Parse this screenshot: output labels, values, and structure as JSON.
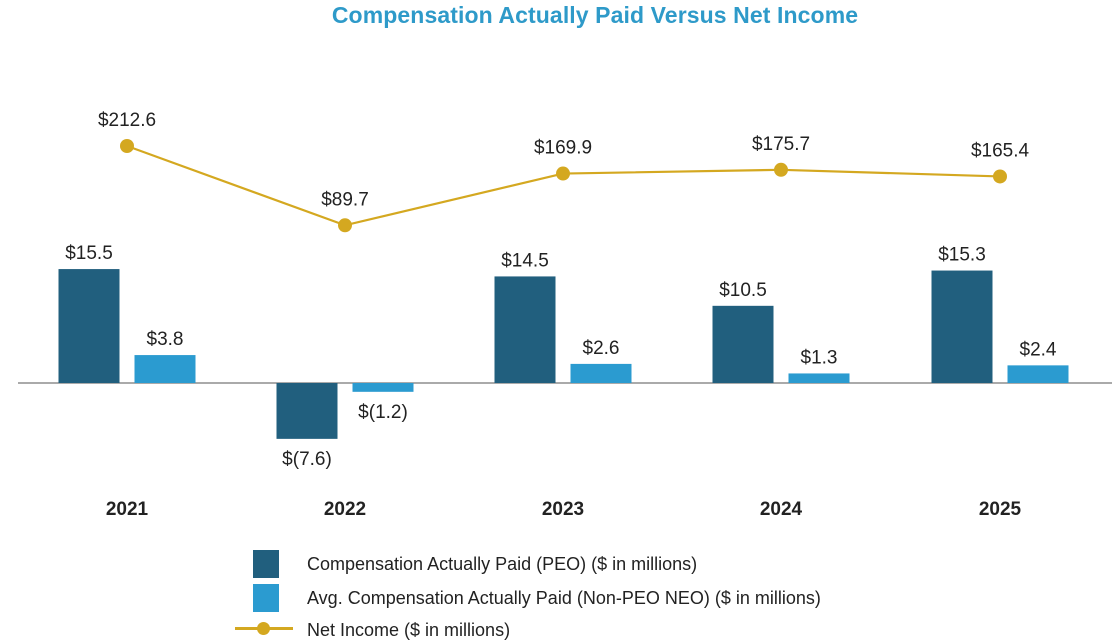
{
  "colors": {
    "title": "#2e9ac9",
    "peo": "#215f7e",
    "nonpeo": "#2b9bd0",
    "net_income": "#d4a820",
    "axis": "#777777",
    "text": "#222222"
  },
  "chart_data": {
    "type": "bar",
    "title": "Compensation Actually Paid Versus Net Income",
    "categories": [
      "2021",
      "2022",
      "2023",
      "2024",
      "2025"
    ],
    "series": [
      {
        "name": "Compensation Actually Paid (PEO) ($ in millions)",
        "kind": "bar",
        "values": [
          15.5,
          -7.6,
          14.5,
          10.5,
          15.3
        ],
        "labels": [
          "$15.5",
          "$(7.6)",
          "$14.5",
          "$10.5",
          "$15.3"
        ]
      },
      {
        "name": "Avg. Compensation Actually Paid (Non-PEO NEO) ($ in millions)",
        "kind": "bar",
        "values": [
          3.8,
          -1.2,
          2.6,
          1.3,
          2.4
        ],
        "labels": [
          "$3.8",
          "$(1.2)",
          "$2.6",
          "$1.3",
          "$2.4"
        ]
      },
      {
        "name": "Net Income ($ in millions)",
        "kind": "line",
        "values": [
          212.6,
          89.7,
          169.9,
          175.7,
          165.4
        ],
        "labels": [
          "$212.6",
          "$89.7",
          "$169.9",
          "$175.7",
          "$165.4"
        ]
      }
    ],
    "legend_position": "bottom",
    "grid": false
  }
}
